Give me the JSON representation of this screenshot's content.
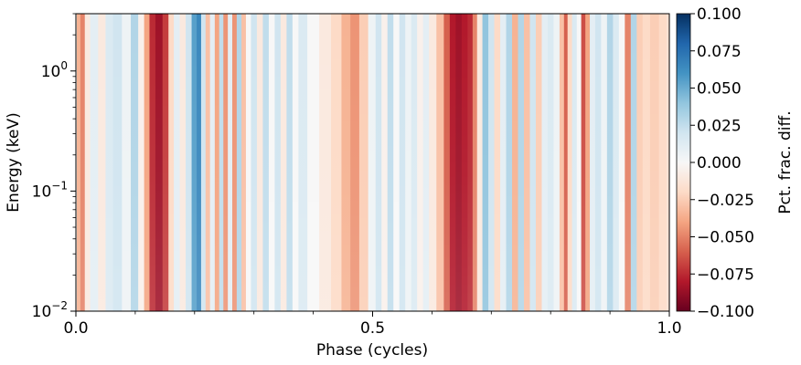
{
  "chart_data": {
    "type": "heatmap",
    "xlabel": "Phase (cycles)",
    "ylabel": "Energy (keV)",
    "colorbar_label": "Pct. frac. diff.",
    "xlim": [
      0.0,
      1.0
    ],
    "ylim": [
      0.01,
      3.0
    ],
    "yscale": "log",
    "colormap": "RdBu",
    "clim": [
      -0.1,
      0.1
    ],
    "x_ticks": [
      0.0,
      0.5,
      1.0
    ],
    "x_tick_labels": [
      "0.0",
      "0.5",
      "1.0"
    ],
    "y_ticks": [
      {
        "value": 0.01,
        "base": "10",
        "exp": "−2"
      },
      {
        "value": 0.1,
        "base": "10",
        "exp": "−1"
      },
      {
        "value": 1,
        "base": "10",
        "exp": "0"
      }
    ],
    "colorbar_ticks": [
      0.1,
      0.075,
      0.05,
      0.025,
      0.0,
      -0.025,
      -0.05,
      -0.075,
      -0.1
    ],
    "colorbar_tick_labels": [
      "0.100",
      "0.075",
      "0.050",
      "0.025",
      "0.000",
      "−0.025",
      "−0.050",
      "−0.075",
      "−0.100"
    ],
    "phase_profile": [
      {
        "x": 0.0,
        "value": 0.0
      },
      {
        "x": 0.003,
        "value": -0.035
      },
      {
        "x": 0.012,
        "value": -0.05
      },
      {
        "x": 0.018,
        "value": -0.01
      },
      {
        "x": 0.03,
        "value": 0.01
      },
      {
        "x": 0.045,
        "value": -0.01
      },
      {
        "x": 0.055,
        "value": 0.015
      },
      {
        "x": 0.07,
        "value": 0.02
      },
      {
        "x": 0.085,
        "value": 0.005
      },
      {
        "x": 0.1,
        "value": 0.03
      },
      {
        "x": 0.11,
        "value": -0.005
      },
      {
        "x": 0.12,
        "value": -0.04
      },
      {
        "x": 0.128,
        "value": -0.075
      },
      {
        "x": 0.14,
        "value": -0.085
      },
      {
        "x": 0.152,
        "value": -0.07
      },
      {
        "x": 0.16,
        "value": -0.02
      },
      {
        "x": 0.17,
        "value": 0.01
      },
      {
        "x": 0.18,
        "value": -0.01
      },
      {
        "x": 0.19,
        "value": 0.02
      },
      {
        "x": 0.2,
        "value": 0.055
      },
      {
        "x": 0.207,
        "value": 0.065
      },
      {
        "x": 0.215,
        "value": 0.02
      },
      {
        "x": 0.222,
        "value": -0.03
      },
      {
        "x": 0.23,
        "value": 0.01
      },
      {
        "x": 0.238,
        "value": -0.04
      },
      {
        "x": 0.245,
        "value": 0.025
      },
      {
        "x": 0.252,
        "value": -0.045
      },
      {
        "x": 0.26,
        "value": 0.01
      },
      {
        "x": 0.267,
        "value": -0.045
      },
      {
        "x": 0.275,
        "value": 0.03
      },
      {
        "x": 0.283,
        "value": -0.03
      },
      {
        "x": 0.29,
        "value": 0.0
      },
      {
        "x": 0.3,
        "value": 0.02
      },
      {
        "x": 0.31,
        "value": -0.01
      },
      {
        "x": 0.32,
        "value": 0.025
      },
      {
        "x": 0.33,
        "value": 0.0
      },
      {
        "x": 0.34,
        "value": 0.02
      },
      {
        "x": 0.35,
        "value": -0.01
      },
      {
        "x": 0.36,
        "value": 0.025
      },
      {
        "x": 0.37,
        "value": 0.0
      },
      {
        "x": 0.38,
        "value": 0.015
      },
      {
        "x": 0.4,
        "value": 0.0
      },
      {
        "x": 0.42,
        "value": -0.01
      },
      {
        "x": 0.44,
        "value": -0.02
      },
      {
        "x": 0.455,
        "value": -0.035
      },
      {
        "x": 0.47,
        "value": -0.045
      },
      {
        "x": 0.485,
        "value": -0.025
      },
      {
        "x": 0.5,
        "value": 0.005
      },
      {
        "x": 0.51,
        "value": 0.02
      },
      {
        "x": 0.52,
        "value": -0.005
      },
      {
        "x": 0.53,
        "value": 0.025
      },
      {
        "x": 0.54,
        "value": 0.0
      },
      {
        "x": 0.55,
        "value": 0.02
      },
      {
        "x": 0.56,
        "value": 0.005
      },
      {
        "x": 0.57,
        "value": 0.015
      },
      {
        "x": 0.58,
        "value": -0.005
      },
      {
        "x": 0.59,
        "value": 0.01
      },
      {
        "x": 0.6,
        "value": -0.01
      },
      {
        "x": 0.615,
        "value": -0.03
      },
      {
        "x": 0.625,
        "value": -0.06
      },
      {
        "x": 0.635,
        "value": -0.08
      },
      {
        "x": 0.645,
        "value": -0.085
      },
      {
        "x": 0.655,
        "value": -0.08
      },
      {
        "x": 0.665,
        "value": -0.075
      },
      {
        "x": 0.672,
        "value": -0.05
      },
      {
        "x": 0.68,
        "value": -0.01
      },
      {
        "x": 0.69,
        "value": 0.04
      },
      {
        "x": 0.7,
        "value": 0.02
      },
      {
        "x": 0.71,
        "value": -0.02
      },
      {
        "x": 0.72,
        "value": 0.01
      },
      {
        "x": 0.73,
        "value": 0.03
      },
      {
        "x": 0.74,
        "value": -0.035
      },
      {
        "x": 0.75,
        "value": 0.03
      },
      {
        "x": 0.76,
        "value": -0.03
      },
      {
        "x": 0.77,
        "value": 0.02
      },
      {
        "x": 0.78,
        "value": -0.025
      },
      {
        "x": 0.79,
        "value": 0.01
      },
      {
        "x": 0.8,
        "value": 0.015
      },
      {
        "x": 0.81,
        "value": 0.005
      },
      {
        "x": 0.82,
        "value": -0.03
      },
      {
        "x": 0.825,
        "value": -0.06
      },
      {
        "x": 0.832,
        "value": -0.02
      },
      {
        "x": 0.84,
        "value": 0.015
      },
      {
        "x": 0.848,
        "value": 0.0
      },
      {
        "x": 0.855,
        "value": -0.065
      },
      {
        "x": 0.862,
        "value": -0.04
      },
      {
        "x": 0.87,
        "value": 0.01
      },
      {
        "x": 0.88,
        "value": 0.02
      },
      {
        "x": 0.89,
        "value": 0.005
      },
      {
        "x": 0.9,
        "value": 0.03
      },
      {
        "x": 0.91,
        "value": 0.015
      },
      {
        "x": 0.92,
        "value": 0.0
      },
      {
        "x": 0.93,
        "value": -0.05
      },
      {
        "x": 0.94,
        "value": 0.03
      },
      {
        "x": 0.95,
        "value": -0.025
      },
      {
        "x": 0.96,
        "value": -0.02
      },
      {
        "x": 0.975,
        "value": -0.025
      },
      {
        "x": 0.99,
        "value": -0.02
      },
      {
        "x": 1.0,
        "value": -0.015
      }
    ]
  }
}
